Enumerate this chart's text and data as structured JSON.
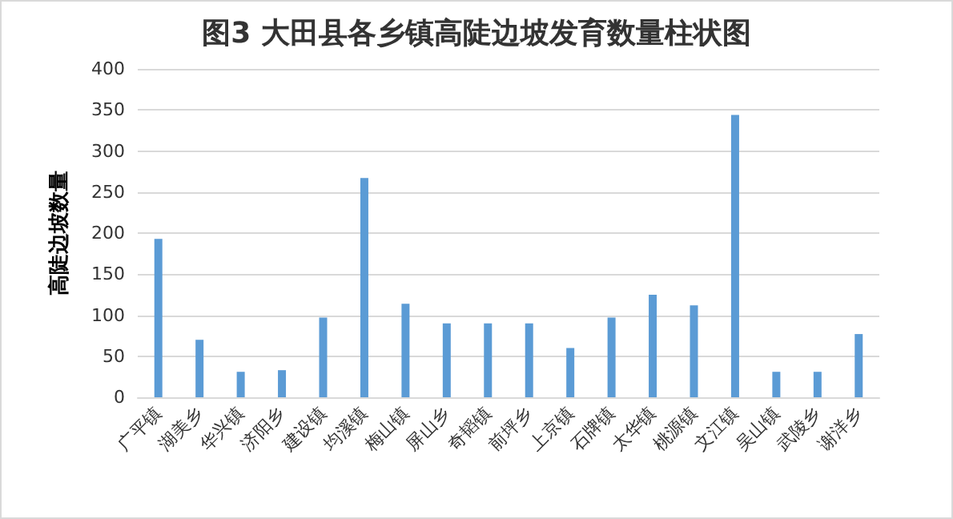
{
  "chart_data": {
    "type": "bar",
    "title": "图3 大田县各乡镇高陡边坡发育数量柱状图",
    "ylabel": "高陡边坡数量",
    "categories": [
      "广平镇",
      "湖美乡",
      "华兴镇",
      "济阳乡",
      "建设镇",
      "均溪镇",
      "梅山镇",
      "屏山乡",
      "奇韬镇",
      "前坪乡",
      "上京镇",
      "石牌镇",
      "太华镇",
      "桃源镇",
      "文江镇",
      "吴山镇",
      "武陵乡",
      "谢洋乡"
    ],
    "values": [
      193,
      70,
      31,
      33,
      97,
      267,
      114,
      90,
      90,
      90,
      60,
      97,
      125,
      112,
      344,
      31,
      31,
      77
    ],
    "color": "#5b9bd5",
    "ylim": [
      0,
      400
    ],
    "yticks": [
      0,
      50,
      100,
      150,
      200,
      250,
      300,
      350,
      400
    ],
    "grid": "y"
  }
}
